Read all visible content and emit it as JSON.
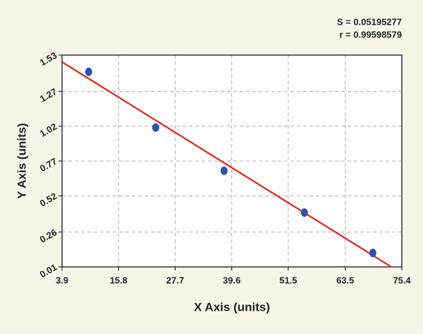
{
  "chart_data": {
    "type": "scatter",
    "x_label": "X Axis (units)",
    "y_label": "Y Axis (units)",
    "annotations": [
      "S = 0.05195277",
      "r = 0.99598579"
    ],
    "x": [
      9.5,
      23.6,
      38.0,
      54.9,
      69.3
    ],
    "values": [
      1.41,
      1.01,
      0.7,
      0.4,
      0.11
    ],
    "color": "#2f4fb0",
    "fit": {
      "x": [
        3.9,
        73.2
      ],
      "values": [
        1.48,
        0.01
      ],
      "color": "#e02418"
    },
    "xlim": [
      3.9,
      75.4
    ],
    "xticks": [
      3.9,
      15.8,
      27.7,
      39.6,
      51.5,
      63.5,
      75.4
    ],
    "ylim": [
      0.01,
      1.53
    ],
    "yticks": [
      0.01,
      0.26,
      0.52,
      0.77,
      1.02,
      1.27,
      1.53
    ],
    "grid": true
  }
}
